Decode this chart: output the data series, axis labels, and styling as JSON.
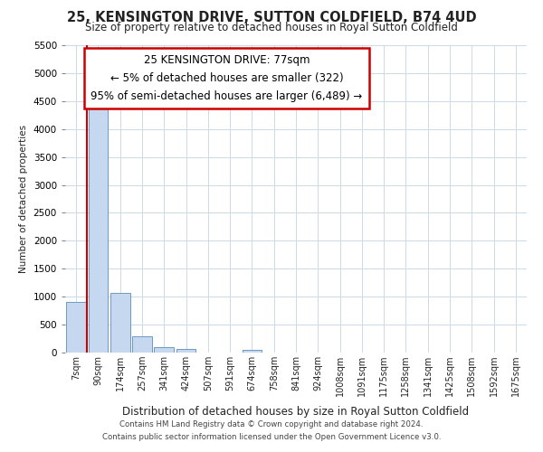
{
  "title": "25, KENSINGTON DRIVE, SUTTON COLDFIELD, B74 4UD",
  "subtitle": "Size of property relative to detached houses in Royal Sutton Coldfield",
  "xlabel": "Distribution of detached houses by size in Royal Sutton Coldfield",
  "ylabel": "Number of detached properties",
  "footer_line1": "Contains HM Land Registry data © Crown copyright and database right 2024.",
  "footer_line2": "Contains public sector information licensed under the Open Government Licence v3.0.",
  "annotation_title": "25 KENSINGTON DRIVE: 77sqm",
  "annotation_line1": "← 5% of detached houses are smaller (322)",
  "annotation_line2": "95% of semi-detached houses are larger (6,489) →",
  "bar_color": "#c5d8f0",
  "bar_edge_color": "#5b8db8",
  "annotation_box_color": "#ffffff",
  "annotation_box_edge": "#cc0000",
  "vline_color": "#cc0000",
  "categories": [
    "7sqm",
    "90sqm",
    "174sqm",
    "257sqm",
    "341sqm",
    "424sqm",
    "507sqm",
    "591sqm",
    "674sqm",
    "758sqm",
    "841sqm",
    "924sqm",
    "1008sqm",
    "1091sqm",
    "1175sqm",
    "1258sqm",
    "1341sqm",
    "1425sqm",
    "1508sqm",
    "1592sqm",
    "1675sqm"
  ],
  "values": [
    900,
    4550,
    1075,
    290,
    95,
    70,
    0,
    0,
    50,
    0,
    0,
    0,
    0,
    0,
    0,
    0,
    0,
    0,
    0,
    0,
    0
  ],
  "ylim": [
    0,
    5500
  ],
  "yticks": [
    0,
    500,
    1000,
    1500,
    2000,
    2500,
    3000,
    3500,
    4000,
    4500,
    5000,
    5500
  ],
  "vline_x": 0.5,
  "figsize": [
    6.0,
    5.0
  ],
  "dpi": 100
}
